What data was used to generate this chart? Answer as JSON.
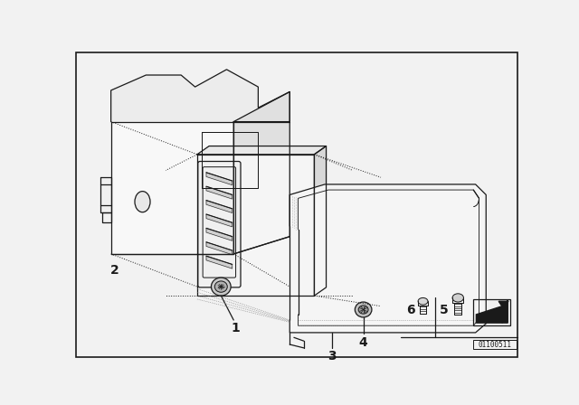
{
  "bg_color": "#f2f2f2",
  "border_color": "#000000",
  "diagram_id": "01100511",
  "fig_width": 6.4,
  "fig_height": 4.48,
  "dpi": 100,
  "lw": 0.9,
  "lc": "#1a1a1a"
}
